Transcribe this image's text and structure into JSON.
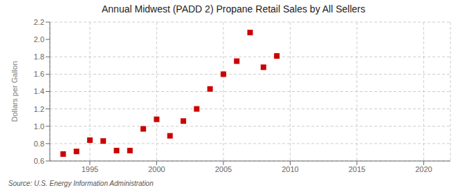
{
  "chart_data": {
    "type": "scatter",
    "title": "Annual Midwest (PADD 2) Propane Retail Sales by All Sellers",
    "ylabel": "Dollars per Gallon",
    "annotations": [
      "Source: U.S. Energy Information Administration"
    ],
    "x": [
      1993,
      1994,
      1995,
      1996,
      1997,
      1998,
      1999,
      2000,
      2001,
      2002,
      2003,
      2004,
      2005,
      2006,
      2007,
      2008,
      2009
    ],
    "values": [
      0.68,
      0.71,
      0.84,
      0.83,
      0.72,
      0.72,
      0.97,
      1.08,
      0.89,
      1.06,
      1.2,
      1.43,
      1.6,
      1.75,
      2.08,
      1.68,
      1.81
    ],
    "color": "#cc0000",
    "marker": "square",
    "xlim": [
      1992,
      2022
    ],
    "ylim": [
      0.6,
      2.2
    ],
    "xticks": [
      1995,
      2000,
      2005,
      2010,
      2015,
      2020
    ],
    "yticks": [
      0.6,
      0.8,
      {
        "value": 1,
        "label": "1.0"
      },
      1.2,
      1.4,
      1.6,
      1.8,
      {
        "value": 2,
        "label": "2.0"
      },
      2.2
    ],
    "grid": true
  }
}
